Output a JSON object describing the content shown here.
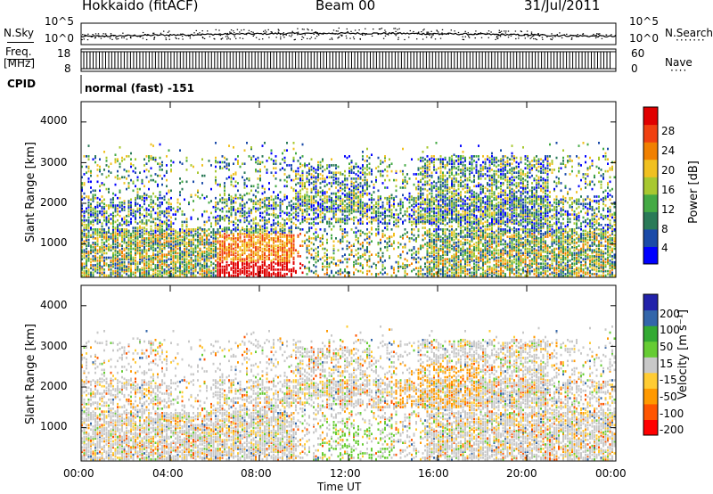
{
  "header": {
    "station": "Hokkaido (fitACF)",
    "beam": "Beam 00",
    "date": "31/Jul/2011"
  },
  "strip_labels": {
    "nsky": "N.Sky",
    "freq_top": "Freq.",
    "freq_unit": "[MHz]",
    "cpid": "CPID",
    "nsearch": "N.Search",
    "nave": "Nave",
    "cpid_value": "normal (fast) -151"
  },
  "noise_axis": {
    "top": "10^5",
    "bottom": "10^0"
  },
  "freq_axis": {
    "left_ticks": [
      "18",
      "8"
    ],
    "right_ticks": [
      "60",
      "0"
    ]
  },
  "colors": {
    "power": [
      "#0000ff",
      "#1a4aa8",
      "#2a7a58",
      "#44aa44",
      "#a8c830",
      "#f0c020",
      "#f08000",
      "#f04010",
      "#e00000"
    ],
    "velocity": [
      "#ff0000",
      "#ff5500",
      "#ff9900",
      "#ffcc33",
      "#c8c8c8",
      "#66cc33",
      "#33aa33",
      "#3366aa",
      "#2222aa"
    ]
  },
  "chart_data": [
    {
      "type": "heatmap",
      "ylabel": "Slant Range [km]",
      "xlabel": "",
      "ylim": [
        180,
        4500
      ],
      "xlim": [
        0,
        24
      ],
      "x_ticks": [
        "00:00",
        "04:00",
        "08:00",
        "12:00",
        "16:00",
        "20:00",
        "00:00"
      ],
      "y_ticks": [
        1000,
        2000,
        3000,
        4000
      ],
      "colorbar": {
        "label": "Power [dB]",
        "ticks": [
          "4",
          "8",
          "12",
          "16",
          "20",
          "24",
          "28"
        ],
        "range": [
          0,
          30
        ]
      }
    },
    {
      "type": "heatmap",
      "ylabel": "Slant Range [km]",
      "xlabel": "Time UT",
      "ylim": [
        180,
        4500
      ],
      "xlim": [
        0,
        24
      ],
      "x_ticks": [
        "00:00",
        "04:00",
        "08:00",
        "12:00",
        "16:00",
        "20:00",
        "00:00"
      ],
      "y_ticks": [
        1000,
        2000,
        3000,
        4000
      ],
      "colorbar": {
        "label": "Velocity [m s⁻¹]",
        "ticks": [
          "200",
          "100",
          "50",
          "15",
          "-15",
          "-50",
          "-100",
          "-200"
        ]
      }
    }
  ]
}
